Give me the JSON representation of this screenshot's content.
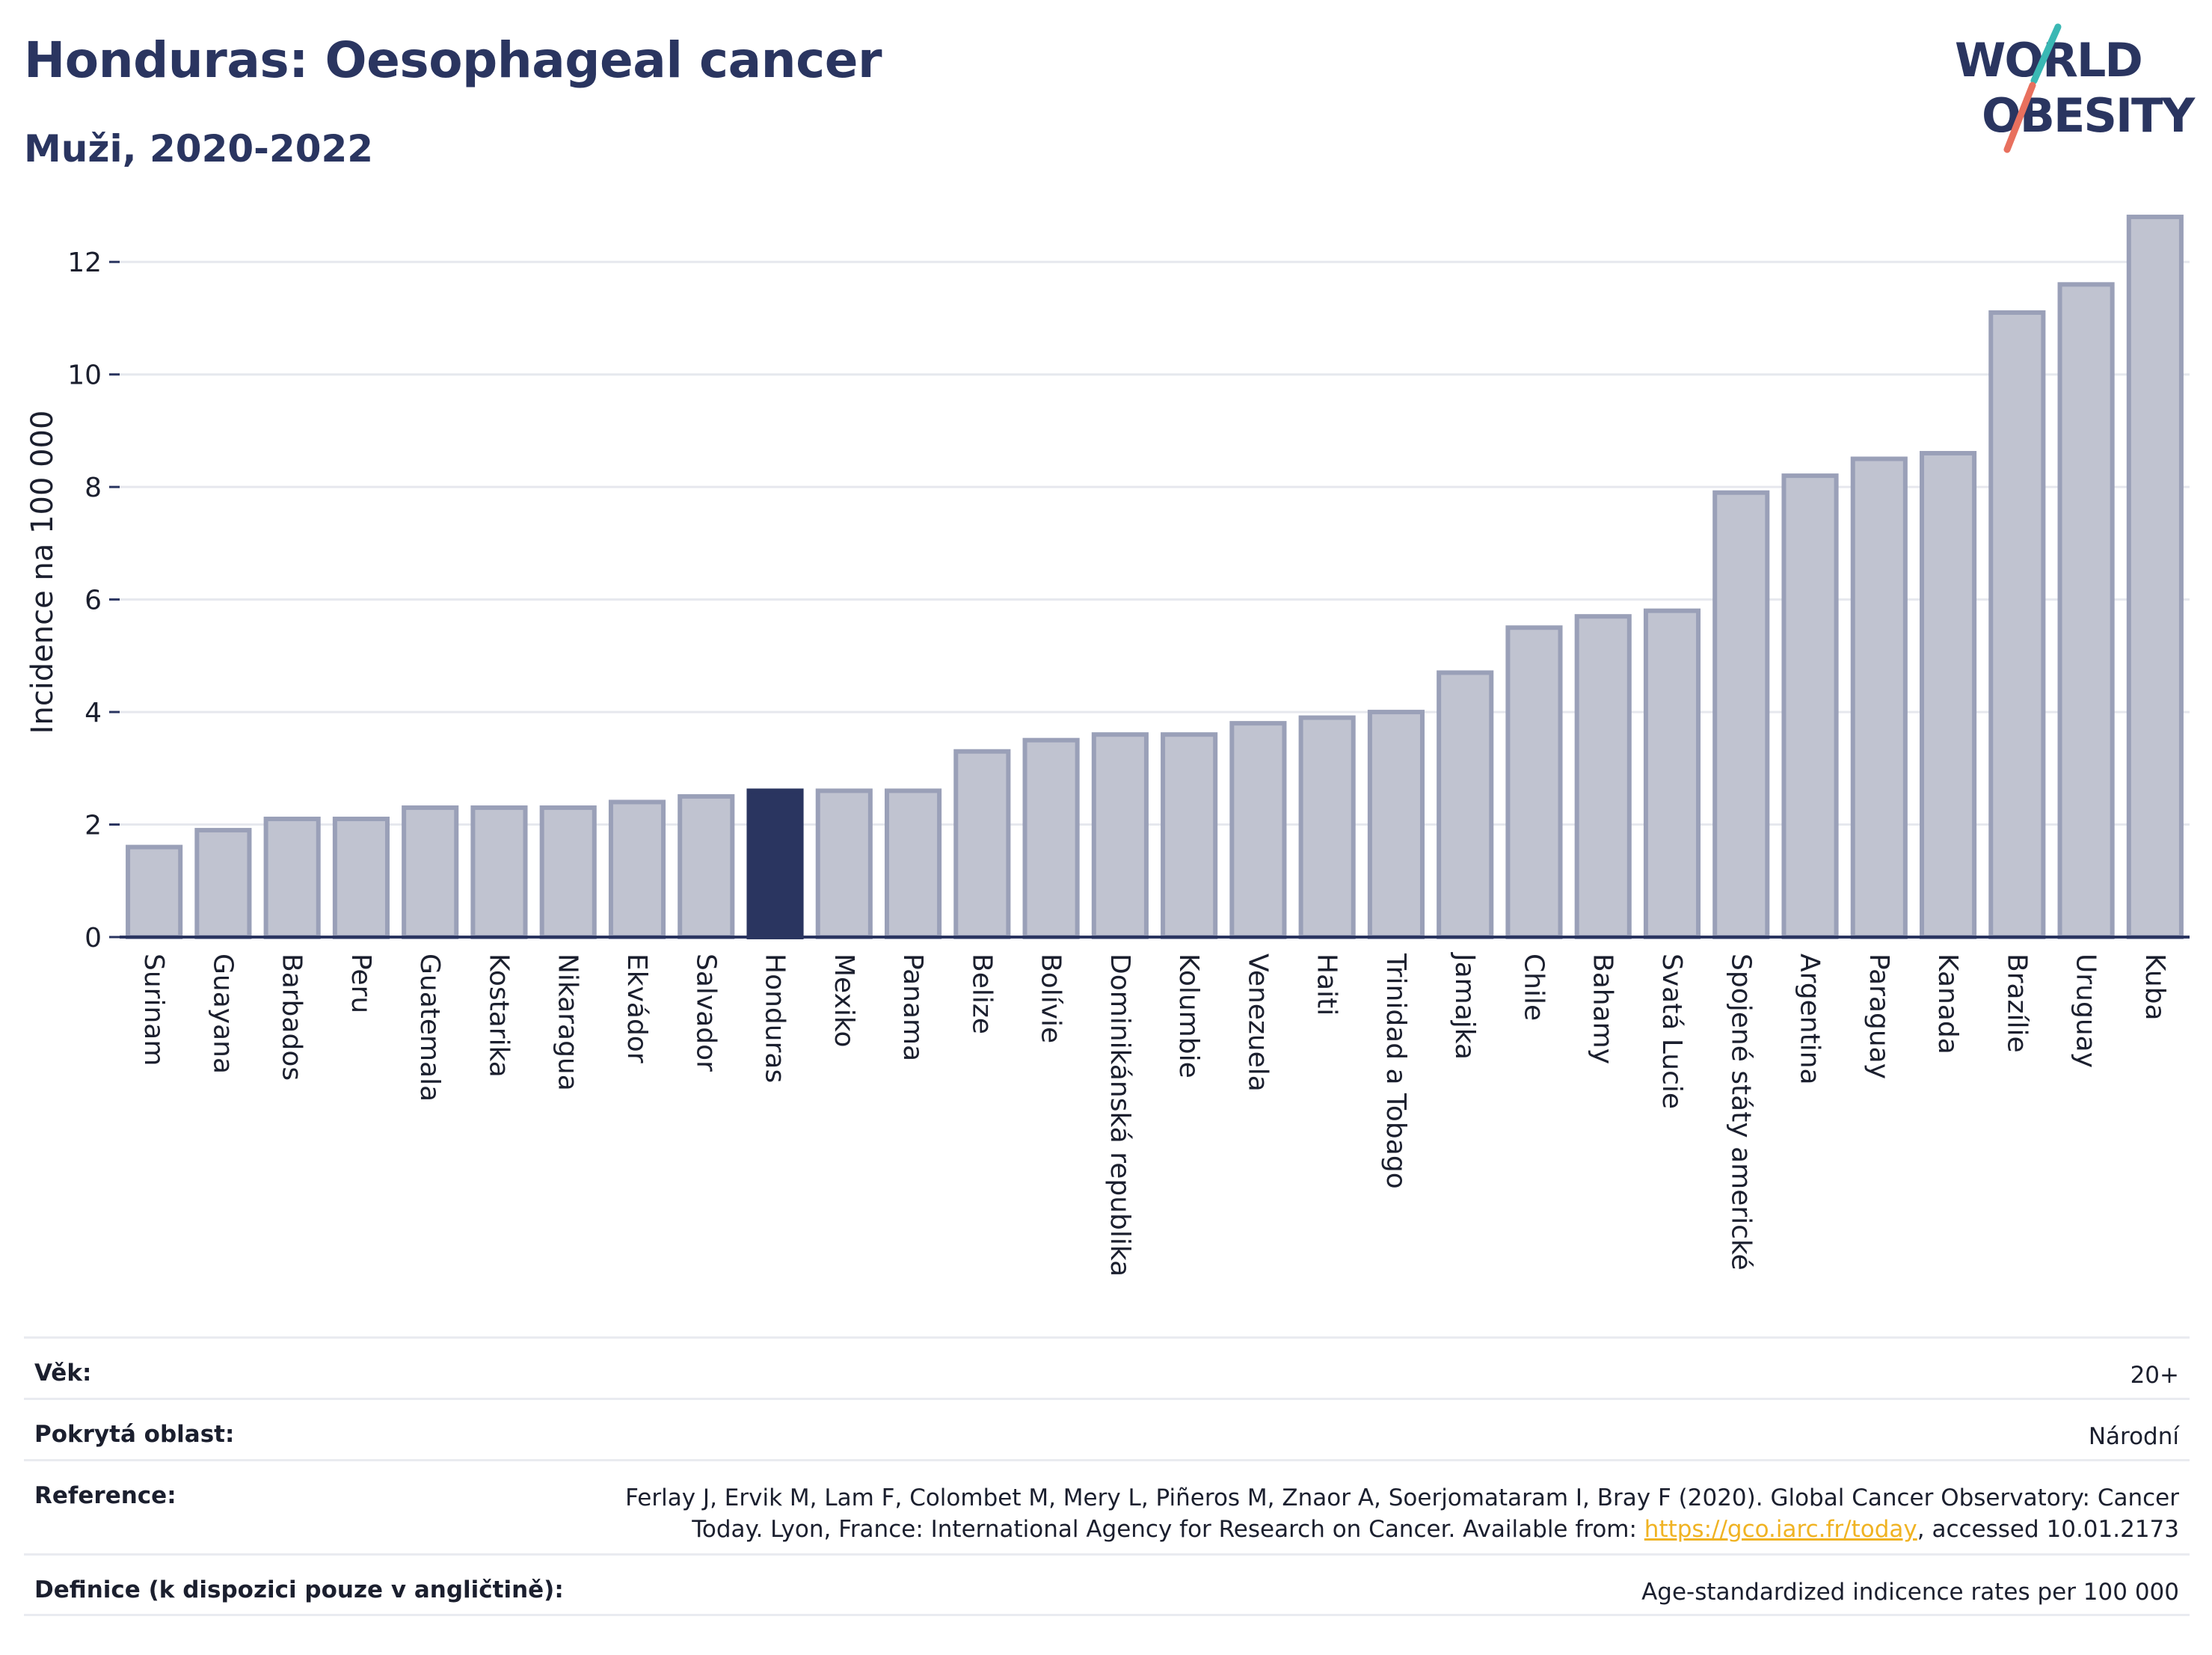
{
  "header": {
    "title": "Honduras: Oesophageal cancer",
    "subtitle": "Muži, 2020-2022"
  },
  "logo": {
    "line1": "WORLD",
    "line2": "OBESITY",
    "colors": {
      "text": "#2a3560",
      "slash_teal": "#3ab8b4",
      "slash_coral": "#e8705e"
    }
  },
  "chart_data": {
    "type": "bar",
    "title": "Honduras: Oesophageal cancer",
    "subtitle": "Muži, 2020-2022",
    "xlabel": "",
    "ylabel": "Incidence na 100 000",
    "ylim": [
      0,
      13
    ],
    "yticks": [
      0,
      2,
      4,
      6,
      8,
      10,
      12
    ],
    "grid": true,
    "highlight": "Honduras",
    "colors": {
      "bar": "#c0c3d0",
      "bar_edge": "#9aa0b8",
      "highlight": "#2a3560",
      "grid": "#e6e8ee",
      "axis": "#2a3560"
    },
    "categories": [
      "Surinam",
      "Guayana",
      "Barbados",
      "Peru",
      "Guatemala",
      "Kostarika",
      "Nikaragua",
      "Ekvádor",
      "Salvador",
      "Honduras",
      "Mexiko",
      "Panama",
      "Belize",
      "Bolívie",
      "Dominikánská republika",
      "Kolumbie",
      "Venezuela",
      "Haiti",
      "Trinidad a Tobago",
      "Jamajka",
      "Chile",
      "Bahamy",
      "Svatá Lucie",
      "Spojené státy americké",
      "Argentina",
      "Paraguay",
      "Kanada",
      "Brazílie",
      "Uruguay",
      "Kuba"
    ],
    "values": [
      1.6,
      1.9,
      2.1,
      2.1,
      2.3,
      2.3,
      2.3,
      2.4,
      2.5,
      2.6,
      2.6,
      2.6,
      3.3,
      3.5,
      3.6,
      3.6,
      3.8,
      3.9,
      4.0,
      4.7,
      5.5,
      5.7,
      5.8,
      7.9,
      8.2,
      8.5,
      8.6,
      11.1,
      11.6,
      12.8
    ]
  },
  "meta": [
    {
      "label": "Věk:",
      "value": "20+"
    },
    {
      "label": "Pokrytá oblast:",
      "value": "Národní"
    },
    {
      "label": "Reference:",
      "value_line1": "Ferlay J, Ervik M, Lam F, Colombet M, Mery L, Piñeros M, Znaor A, Soerjomataram I, Bray F (2020). Global Cancer Observatory: Cancer",
      "value_line2_pre": "Today. Lyon, France: International Agency for Research on Cancer. Available from: ",
      "link": "https://gco.iarc.fr/today",
      "value_line2_post": ", accessed 10.01.2173"
    },
    {
      "label": "Definice (k dispozici pouze v angličtině):",
      "value": "Age-standardized indicence rates per 100 000"
    }
  ]
}
